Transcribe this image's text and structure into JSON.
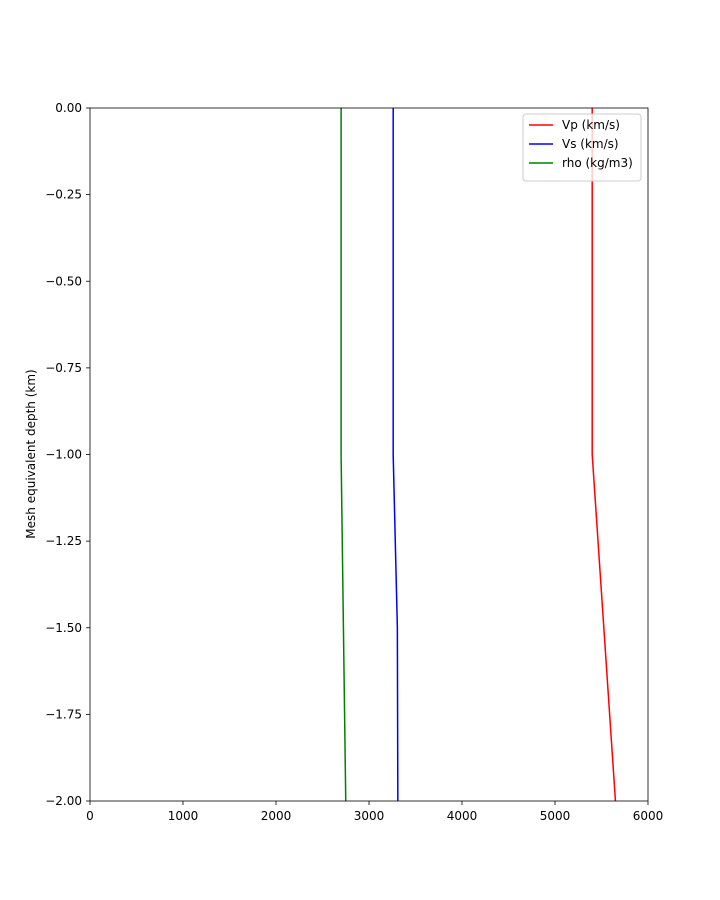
{
  "chart_data": {
    "type": "line",
    "title": "",
    "xlabel": "",
    "ylabel": "Mesh equivalent depth (km)",
    "xlim": [
      0,
      6000
    ],
    "ylim": [
      -2.0,
      0.0
    ],
    "xticks": [
      0,
      1000,
      2000,
      3000,
      4000,
      5000,
      6000
    ],
    "xtick_labels": [
      "0",
      "1000",
      "2000",
      "3000",
      "4000",
      "5000",
      "6000"
    ],
    "yticks": [
      0.0,
      -0.25,
      -0.5,
      -0.75,
      -1.0,
      -1.25,
      -1.5,
      -1.75,
      -2.0
    ],
    "ytick_labels": [
      "0.00",
      "−0.25",
      "−0.50",
      "−0.75",
      "−1.00",
      "−1.25",
      "−1.50",
      "−1.75",
      "−2.00"
    ],
    "grid": false,
    "legend_position": "top-right",
    "series": [
      {
        "name": "Vp (km/s)",
        "color": "#ff0000",
        "points": [
          [
            5400,
            0.0
          ],
          [
            5400,
            -1.0
          ],
          [
            5650,
            -2.0
          ]
        ]
      },
      {
        "name": "Vs (km/s)",
        "color": "#0000ff",
        "points": [
          [
            3260,
            0.0
          ],
          [
            3260,
            -1.0
          ],
          [
            3305,
            -1.5
          ],
          [
            3310,
            -2.0
          ]
        ]
      },
      {
        "name": "rho (kg/m3)",
        "color": "#008000",
        "points": [
          [
            2700,
            0.0
          ],
          [
            2700,
            -1.0
          ],
          [
            2750,
            -2.0
          ]
        ]
      }
    ]
  }
}
